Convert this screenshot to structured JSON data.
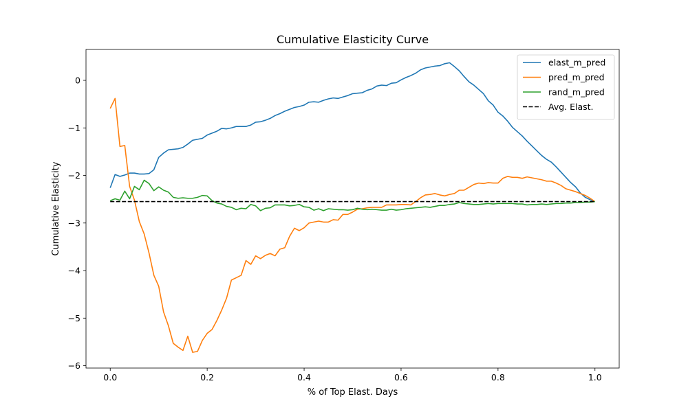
{
  "chart_data": {
    "type": "line",
    "title": "Cumulative Elasticity Curve",
    "xlabel": "% of Top Elast. Days",
    "ylabel": "Cumulative Elasticity",
    "xlim": [
      -0.05,
      1.05
    ],
    "ylim": [
      -6.05,
      0.65
    ],
    "xticks": [
      0.0,
      0.2,
      0.4,
      0.6,
      0.8,
      1.0
    ],
    "xtick_labels": [
      "0.0",
      "0.2",
      "0.4",
      "0.6",
      "0.8",
      "1.0"
    ],
    "yticks": [
      0,
      -1,
      -2,
      -3,
      -4,
      -5,
      -6
    ],
    "ytick_labels": [
      "0",
      "−1",
      "−2",
      "−3",
      "−4",
      "−5",
      "−6"
    ],
    "grid": false,
    "legend_position": "top-right",
    "series": [
      {
        "name": "elast_m_pred",
        "color": "#1f77b4",
        "dash": "solid",
        "points": [
          [
            0.0,
            -2.26
          ],
          [
            0.01,
            -1.98
          ],
          [
            0.02,
            -2.02
          ],
          [
            0.03,
            -1.99
          ],
          [
            0.04,
            -1.95
          ],
          [
            0.05,
            -1.95
          ],
          [
            0.06,
            -1.97
          ],
          [
            0.07,
            -1.97
          ],
          [
            0.08,
            -1.96
          ],
          [
            0.09,
            -1.88
          ],
          [
            0.1,
            -1.62
          ],
          [
            0.11,
            -1.53
          ],
          [
            0.12,
            -1.46
          ],
          [
            0.13,
            -1.45
          ],
          [
            0.14,
            -1.44
          ],
          [
            0.15,
            -1.41
          ],
          [
            0.16,
            -1.34
          ],
          [
            0.17,
            -1.26
          ],
          [
            0.18,
            -1.24
          ],
          [
            0.19,
            -1.22
          ],
          [
            0.2,
            -1.15
          ],
          [
            0.21,
            -1.11
          ],
          [
            0.22,
            -1.07
          ],
          [
            0.23,
            -1.01
          ],
          [
            0.24,
            -1.02
          ],
          [
            0.25,
            -1.0
          ],
          [
            0.26,
            -0.97
          ],
          [
            0.27,
            -0.97
          ],
          [
            0.28,
            -0.97
          ],
          [
            0.29,
            -0.94
          ],
          [
            0.3,
            -0.88
          ],
          [
            0.31,
            -0.87
          ],
          [
            0.32,
            -0.84
          ],
          [
            0.33,
            -0.8
          ],
          [
            0.34,
            -0.74
          ],
          [
            0.35,
            -0.7
          ],
          [
            0.36,
            -0.65
          ],
          [
            0.37,
            -0.61
          ],
          [
            0.38,
            -0.57
          ],
          [
            0.39,
            -0.55
          ],
          [
            0.4,
            -0.52
          ],
          [
            0.41,
            -0.46
          ],
          [
            0.42,
            -0.45
          ],
          [
            0.43,
            -0.46
          ],
          [
            0.44,
            -0.42
          ],
          [
            0.45,
            -0.39
          ],
          [
            0.46,
            -0.37
          ],
          [
            0.47,
            -0.38
          ],
          [
            0.48,
            -0.35
          ],
          [
            0.49,
            -0.32
          ],
          [
            0.5,
            -0.28
          ],
          [
            0.51,
            -0.27
          ],
          [
            0.52,
            -0.26
          ],
          [
            0.53,
            -0.21
          ],
          [
            0.54,
            -0.18
          ],
          [
            0.55,
            -0.12
          ],
          [
            0.56,
            -0.1
          ],
          [
            0.57,
            -0.11
          ],
          [
            0.58,
            -0.06
          ],
          [
            0.59,
            -0.05
          ],
          [
            0.6,
            0.01
          ],
          [
            0.61,
            0.06
          ],
          [
            0.62,
            0.1
          ],
          [
            0.63,
            0.15
          ],
          [
            0.64,
            0.22
          ],
          [
            0.65,
            0.26
          ],
          [
            0.66,
            0.28
          ],
          [
            0.67,
            0.3
          ],
          [
            0.68,
            0.31
          ],
          [
            0.69,
            0.35
          ],
          [
            0.7,
            0.37
          ],
          [
            0.71,
            0.29
          ],
          [
            0.72,
            0.2
          ],
          [
            0.73,
            0.08
          ],
          [
            0.74,
            -0.03
          ],
          [
            0.75,
            -0.1
          ],
          [
            0.76,
            -0.19
          ],
          [
            0.77,
            -0.28
          ],
          [
            0.78,
            -0.43
          ],
          [
            0.79,
            -0.52
          ],
          [
            0.8,
            -0.67
          ],
          [
            0.81,
            -0.75
          ],
          [
            0.82,
            -0.86
          ],
          [
            0.83,
            -0.99
          ],
          [
            0.84,
            -1.08
          ],
          [
            0.85,
            -1.17
          ],
          [
            0.86,
            -1.28
          ],
          [
            0.87,
            -1.38
          ],
          [
            0.88,
            -1.48
          ],
          [
            0.89,
            -1.58
          ],
          [
            0.9,
            -1.66
          ],
          [
            0.91,
            -1.72
          ],
          [
            0.92,
            -1.82
          ],
          [
            0.93,
            -1.93
          ],
          [
            0.94,
            -2.04
          ],
          [
            0.95,
            -2.15
          ],
          [
            0.96,
            -2.24
          ],
          [
            0.97,
            -2.37
          ],
          [
            0.98,
            -2.46
          ],
          [
            0.99,
            -2.51
          ],
          [
            1.0,
            -2.55
          ]
        ]
      },
      {
        "name": "pred_m_pred",
        "color": "#ff7f0e",
        "dash": "solid",
        "points": [
          [
            0.0,
            -0.59
          ],
          [
            0.01,
            -0.38
          ],
          [
            0.02,
            -1.39
          ],
          [
            0.03,
            -1.37
          ],
          [
            0.04,
            -2.23
          ],
          [
            0.05,
            -2.52
          ],
          [
            0.06,
            -2.97
          ],
          [
            0.07,
            -3.23
          ],
          [
            0.08,
            -3.63
          ],
          [
            0.09,
            -4.1
          ],
          [
            0.1,
            -4.33
          ],
          [
            0.11,
            -4.87
          ],
          [
            0.12,
            -5.16
          ],
          [
            0.13,
            -5.53
          ],
          [
            0.14,
            -5.61
          ],
          [
            0.15,
            -5.68
          ],
          [
            0.16,
            -5.38
          ],
          [
            0.17,
            -5.72
          ],
          [
            0.18,
            -5.7
          ],
          [
            0.19,
            -5.47
          ],
          [
            0.2,
            -5.32
          ],
          [
            0.21,
            -5.24
          ],
          [
            0.22,
            -5.05
          ],
          [
            0.23,
            -4.83
          ],
          [
            0.24,
            -4.58
          ],
          [
            0.25,
            -4.2
          ],
          [
            0.26,
            -4.15
          ],
          [
            0.27,
            -4.1
          ],
          [
            0.28,
            -3.79
          ],
          [
            0.29,
            -3.87
          ],
          [
            0.3,
            -3.69
          ],
          [
            0.31,
            -3.75
          ],
          [
            0.32,
            -3.68
          ],
          [
            0.33,
            -3.64
          ],
          [
            0.34,
            -3.69
          ],
          [
            0.35,
            -3.55
          ],
          [
            0.36,
            -3.52
          ],
          [
            0.37,
            -3.28
          ],
          [
            0.38,
            -3.11
          ],
          [
            0.39,
            -3.16
          ],
          [
            0.4,
            -3.1
          ],
          [
            0.41,
            -3.0
          ],
          [
            0.42,
            -2.98
          ],
          [
            0.43,
            -2.96
          ],
          [
            0.44,
            -2.98
          ],
          [
            0.45,
            -2.98
          ],
          [
            0.46,
            -2.93
          ],
          [
            0.47,
            -2.94
          ],
          [
            0.48,
            -2.82
          ],
          [
            0.49,
            -2.82
          ],
          [
            0.5,
            -2.77
          ],
          [
            0.51,
            -2.71
          ],
          [
            0.52,
            -2.7
          ],
          [
            0.53,
            -2.68
          ],
          [
            0.54,
            -2.67
          ],
          [
            0.55,
            -2.67
          ],
          [
            0.56,
            -2.67
          ],
          [
            0.57,
            -2.62
          ],
          [
            0.58,
            -2.62
          ],
          [
            0.59,
            -2.62
          ],
          [
            0.6,
            -2.61
          ],
          [
            0.61,
            -2.61
          ],
          [
            0.62,
            -2.62
          ],
          [
            0.63,
            -2.55
          ],
          [
            0.64,
            -2.47
          ],
          [
            0.65,
            -2.41
          ],
          [
            0.66,
            -2.4
          ],
          [
            0.67,
            -2.38
          ],
          [
            0.68,
            -2.41
          ],
          [
            0.69,
            -2.43
          ],
          [
            0.7,
            -2.4
          ],
          [
            0.71,
            -2.38
          ],
          [
            0.72,
            -2.31
          ],
          [
            0.73,
            -2.31
          ],
          [
            0.74,
            -2.25
          ],
          [
            0.75,
            -2.19
          ],
          [
            0.76,
            -2.16
          ],
          [
            0.77,
            -2.17
          ],
          [
            0.78,
            -2.15
          ],
          [
            0.79,
            -2.16
          ],
          [
            0.8,
            -2.16
          ],
          [
            0.81,
            -2.06
          ],
          [
            0.82,
            -2.02
          ],
          [
            0.83,
            -2.04
          ],
          [
            0.84,
            -2.04
          ],
          [
            0.85,
            -2.06
          ],
          [
            0.86,
            -2.03
          ],
          [
            0.87,
            -2.05
          ],
          [
            0.88,
            -2.07
          ],
          [
            0.89,
            -2.09
          ],
          [
            0.9,
            -2.12
          ],
          [
            0.91,
            -2.12
          ],
          [
            0.92,
            -2.16
          ],
          [
            0.93,
            -2.21
          ],
          [
            0.94,
            -2.28
          ],
          [
            0.95,
            -2.31
          ],
          [
            0.96,
            -2.34
          ],
          [
            0.97,
            -2.38
          ],
          [
            0.98,
            -2.42
          ],
          [
            0.99,
            -2.48
          ],
          [
            1.0,
            -2.55
          ]
        ]
      },
      {
        "name": "rand_m_pred",
        "color": "#2ca02c",
        "dash": "solid",
        "points": [
          [
            0.0,
            -2.53
          ],
          [
            0.01,
            -2.49
          ],
          [
            0.02,
            -2.52
          ],
          [
            0.03,
            -2.33
          ],
          [
            0.04,
            -2.49
          ],
          [
            0.05,
            -2.23
          ],
          [
            0.06,
            -2.3
          ],
          [
            0.07,
            -2.1
          ],
          [
            0.08,
            -2.17
          ],
          [
            0.09,
            -2.32
          ],
          [
            0.1,
            -2.24
          ],
          [
            0.11,
            -2.31
          ],
          [
            0.12,
            -2.35
          ],
          [
            0.13,
            -2.46
          ],
          [
            0.14,
            -2.48
          ],
          [
            0.15,
            -2.47
          ],
          [
            0.16,
            -2.48
          ],
          [
            0.17,
            -2.48
          ],
          [
            0.18,
            -2.46
          ],
          [
            0.19,
            -2.42
          ],
          [
            0.2,
            -2.43
          ],
          [
            0.21,
            -2.53
          ],
          [
            0.22,
            -2.58
          ],
          [
            0.23,
            -2.6
          ],
          [
            0.24,
            -2.65
          ],
          [
            0.25,
            -2.67
          ],
          [
            0.26,
            -2.72
          ],
          [
            0.27,
            -2.69
          ],
          [
            0.28,
            -2.7
          ],
          [
            0.29,
            -2.61
          ],
          [
            0.3,
            -2.64
          ],
          [
            0.31,
            -2.74
          ],
          [
            0.32,
            -2.69
          ],
          [
            0.33,
            -2.68
          ],
          [
            0.34,
            -2.62
          ],
          [
            0.35,
            -2.62
          ],
          [
            0.36,
            -2.62
          ],
          [
            0.37,
            -2.64
          ],
          [
            0.38,
            -2.63
          ],
          [
            0.39,
            -2.61
          ],
          [
            0.4,
            -2.66
          ],
          [
            0.41,
            -2.67
          ],
          [
            0.42,
            -2.73
          ],
          [
            0.43,
            -2.7
          ],
          [
            0.44,
            -2.74
          ],
          [
            0.45,
            -2.7
          ],
          [
            0.46,
            -2.71
          ],
          [
            0.47,
            -2.72
          ],
          [
            0.48,
            -2.72
          ],
          [
            0.49,
            -2.73
          ],
          [
            0.5,
            -2.72
          ],
          [
            0.51,
            -2.69
          ],
          [
            0.52,
            -2.71
          ],
          [
            0.53,
            -2.72
          ],
          [
            0.54,
            -2.71
          ],
          [
            0.55,
            -2.72
          ],
          [
            0.56,
            -2.73
          ],
          [
            0.57,
            -2.73
          ],
          [
            0.58,
            -2.71
          ],
          [
            0.59,
            -2.73
          ],
          [
            0.6,
            -2.72
          ],
          [
            0.61,
            -2.7
          ],
          [
            0.62,
            -2.69
          ],
          [
            0.63,
            -2.68
          ],
          [
            0.64,
            -2.67
          ],
          [
            0.65,
            -2.66
          ],
          [
            0.66,
            -2.67
          ],
          [
            0.67,
            -2.65
          ],
          [
            0.68,
            -2.63
          ],
          [
            0.69,
            -2.63
          ],
          [
            0.7,
            -2.61
          ],
          [
            0.71,
            -2.6
          ],
          [
            0.72,
            -2.57
          ],
          [
            0.73,
            -2.59
          ],
          [
            0.74,
            -2.6
          ],
          [
            0.75,
            -2.61
          ],
          [
            0.76,
            -2.61
          ],
          [
            0.77,
            -2.6
          ],
          [
            0.78,
            -2.59
          ],
          [
            0.79,
            -2.6
          ],
          [
            0.8,
            -2.59
          ],
          [
            0.81,
            -2.59
          ],
          [
            0.82,
            -2.59
          ],
          [
            0.83,
            -2.59
          ],
          [
            0.84,
            -2.6
          ],
          [
            0.85,
            -2.6
          ],
          [
            0.86,
            -2.62
          ],
          [
            0.87,
            -2.61
          ],
          [
            0.88,
            -2.61
          ],
          [
            0.89,
            -2.6
          ],
          [
            0.9,
            -2.61
          ],
          [
            0.91,
            -2.6
          ],
          [
            0.92,
            -2.59
          ],
          [
            0.93,
            -2.59
          ],
          [
            0.94,
            -2.58
          ],
          [
            0.95,
            -2.58
          ],
          [
            0.96,
            -2.57
          ],
          [
            0.97,
            -2.57
          ],
          [
            0.98,
            -2.56
          ],
          [
            0.99,
            -2.56
          ],
          [
            1.0,
            -2.55
          ]
        ]
      },
      {
        "name": "Avg. Elast.",
        "color": "#000000",
        "dash": "dashed",
        "points": [
          [
            0.0,
            -2.55
          ],
          [
            1.0,
            -2.55
          ]
        ]
      }
    ]
  }
}
